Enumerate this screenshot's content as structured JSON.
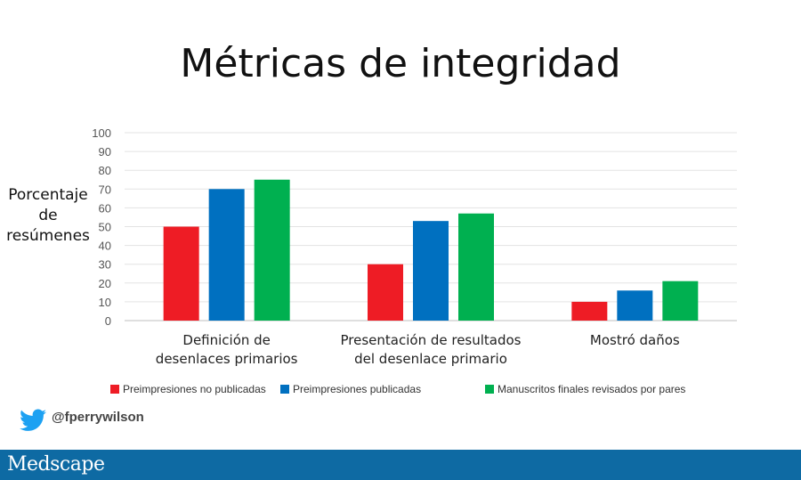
{
  "chart_data": {
    "type": "bar",
    "title": "Métricas de integridad",
    "ylabel_lines": [
      "Porcentaje",
      "de",
      "resúmenes"
    ],
    "ylim": [
      0,
      100
    ],
    "yticks": [
      0,
      10,
      20,
      30,
      40,
      50,
      60,
      70,
      80,
      90,
      100
    ],
    "grid": true,
    "legend_position": "bottom",
    "categories": [
      [
        "Definición de",
        "desenlaces primarios"
      ],
      [
        "Presentación de resultados",
        "del desenlace primario"
      ],
      [
        "Mostró daños"
      ]
    ],
    "series": [
      {
        "name": "Preimpresiones no publicadas",
        "color": "#ee1c25",
        "values": [
          50,
          30,
          10
        ]
      },
      {
        "name": "Preimpresiones publicadas",
        "color": "#0070c0",
        "values": [
          70,
          53,
          16
        ]
      },
      {
        "name": "Manuscritos finales revisados por pares",
        "color": "#00b050",
        "values": [
          75,
          57,
          21
        ]
      }
    ]
  },
  "credit": {
    "handle": "@fperrywilson",
    "icon": "twitter-bird-icon",
    "icon_color": "#1da1f2"
  },
  "footer": {
    "brand": "Medscape",
    "background": "#0e6aa3"
  }
}
